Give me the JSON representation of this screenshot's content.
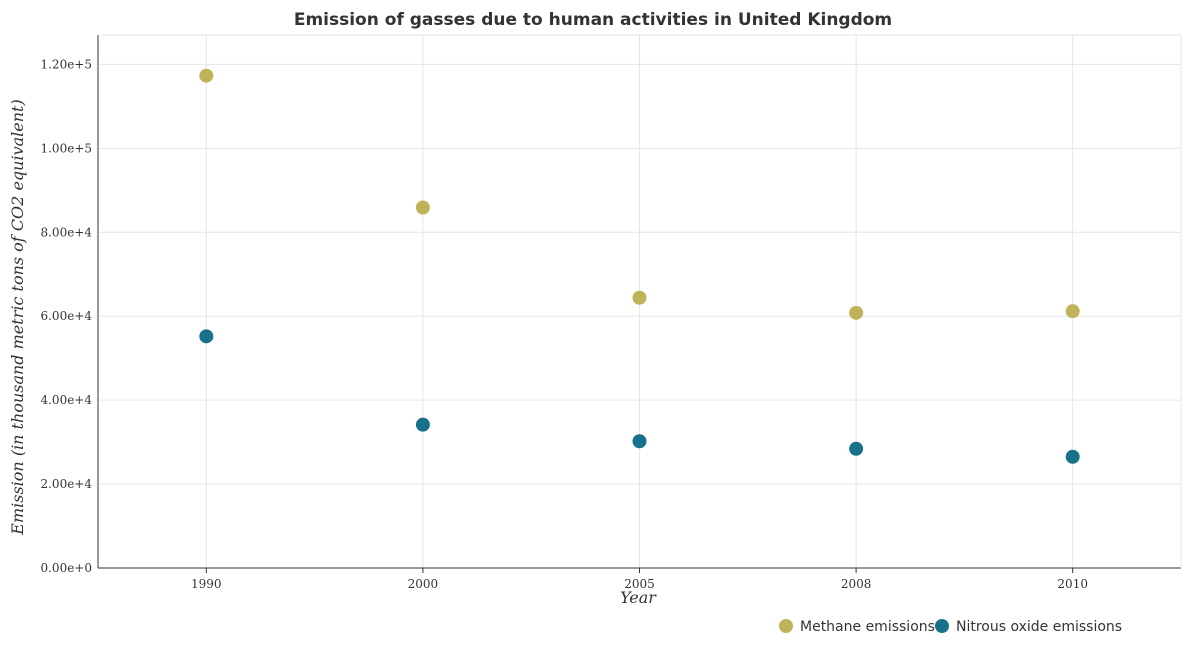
{
  "chart_data": {
    "type": "scatter",
    "title": "Emission of gasses due to human activities in United Kingdom",
    "xlabel": "Year",
    "ylabel": "Emission (in thousand metric tons of CO2 equivalent)",
    "categories": [
      "1990",
      "2000",
      "2005",
      "2008",
      "2010"
    ],
    "y_ticks": [
      "0.00e+0",
      "2.00e+4",
      "4.00e+4",
      "6.00e+4",
      "8.00e+4",
      "1.00e+5",
      "1.20e+5"
    ],
    "ylim": [
      0,
      127000
    ],
    "grid": true,
    "legend_position": "bottom-right",
    "series": [
      {
        "name": "Methane emissions",
        "color": "#bfb35a",
        "values": [
          117300,
          85900,
          64400,
          60800,
          61200
        ]
      },
      {
        "name": "Nitrous oxide emissions",
        "color": "#17718a",
        "values": [
          55200,
          34150,
          30200,
          28400,
          26500
        ]
      }
    ]
  }
}
